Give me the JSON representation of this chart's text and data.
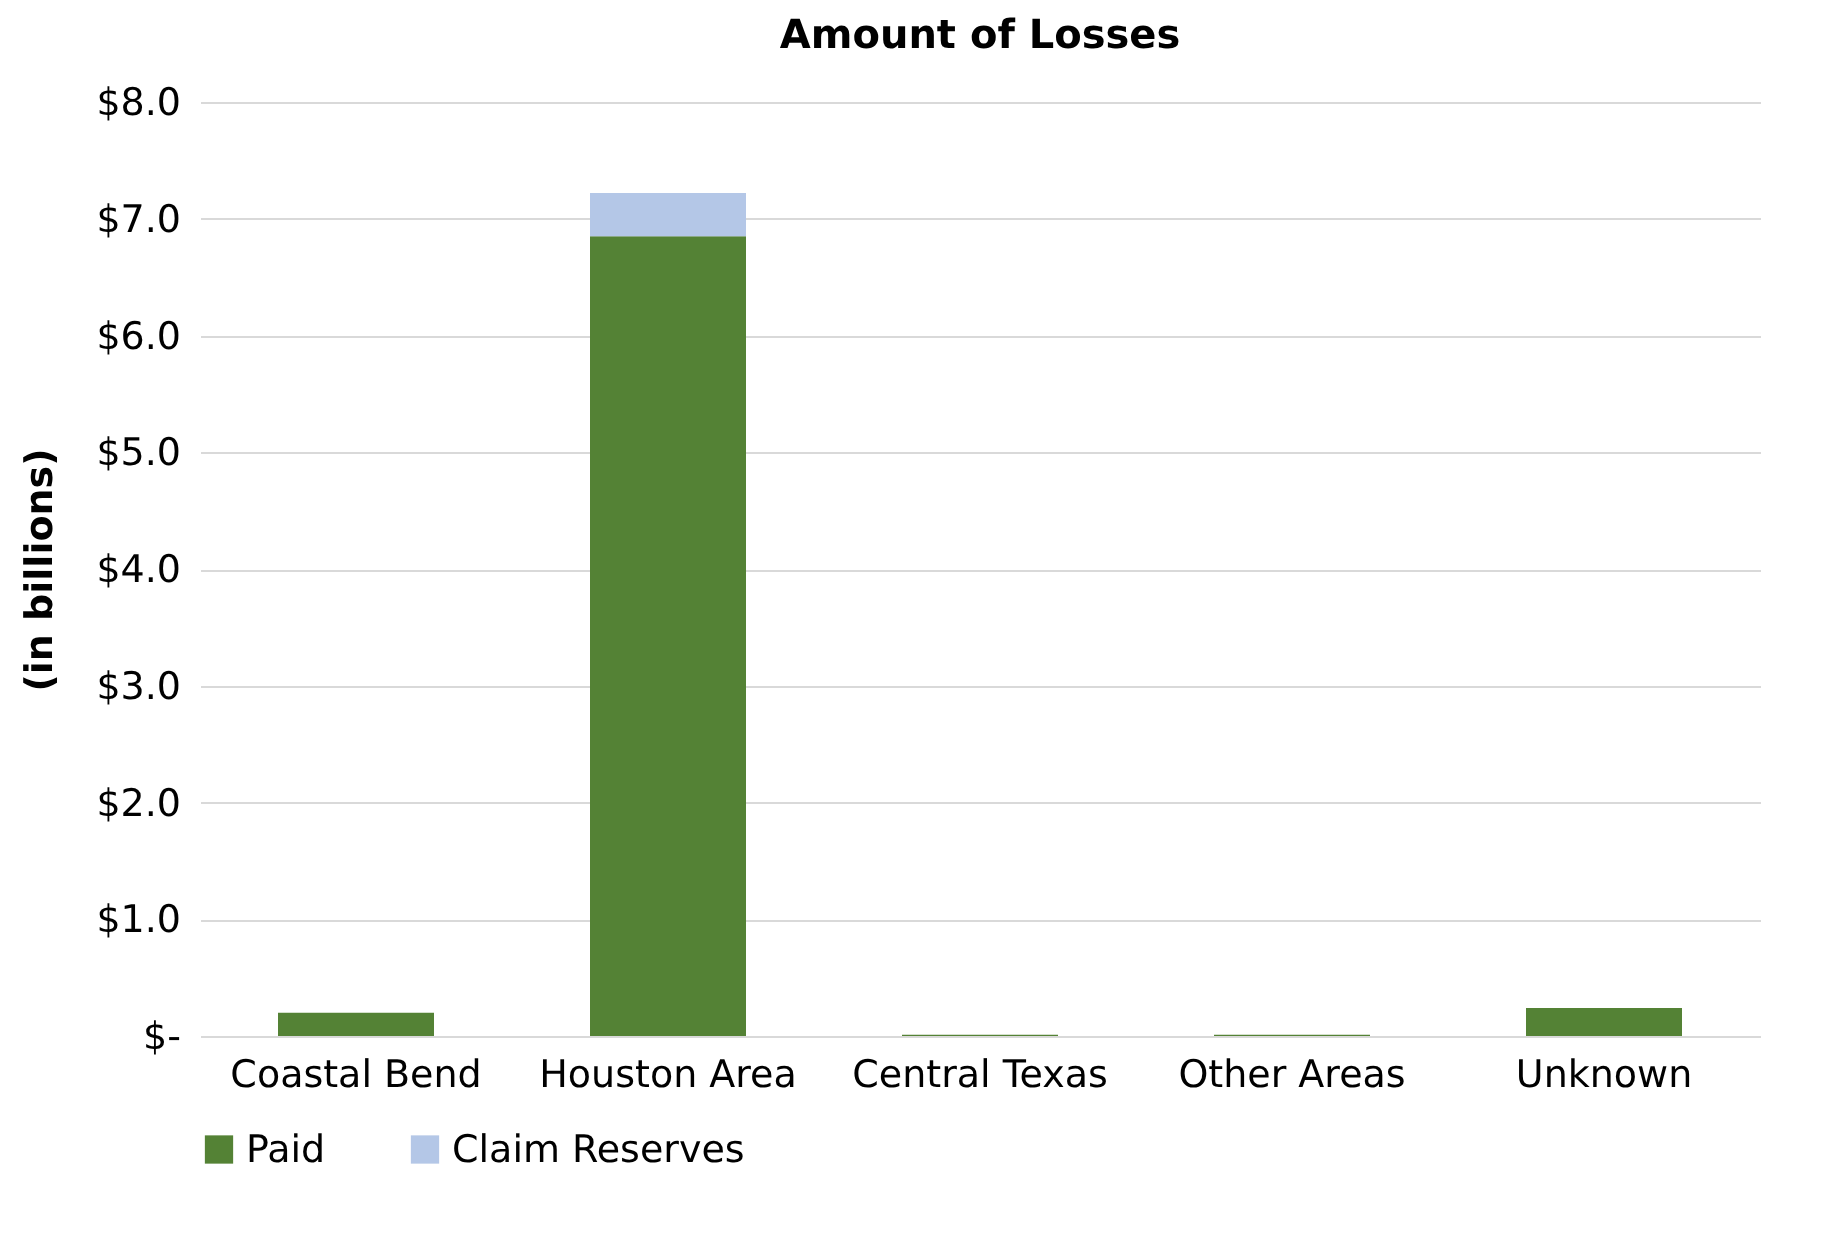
{
  "chart_data": {
    "type": "bar",
    "title": "Amount of Losses",
    "ylabel": "(in billions)",
    "stacked": true,
    "categories": [
      "Coastal Bend",
      "Houston Area",
      "Central Texas",
      "Other Areas",
      "Unknown"
    ],
    "series": [
      {
        "name": "Paid",
        "color": "#548235",
        "values": [
          0.2,
          6.85,
          0.01,
          0.01,
          0.24
        ]
      },
      {
        "name": "Claim Reserves",
        "color": "#b4c7e7",
        "values": [
          0,
          0.37,
          0,
          0,
          0
        ]
      }
    ],
    "ylim": [
      0,
      8
    ],
    "yticks": [
      {
        "value": 0,
        "label": "$-"
      },
      {
        "value": 1,
        "label": "$1.0"
      },
      {
        "value": 2,
        "label": "$2.0"
      },
      {
        "value": 3,
        "label": "$3.0"
      },
      {
        "value": 4,
        "label": "$4.0"
      },
      {
        "value": 5,
        "label": "$5.0"
      },
      {
        "value": 6,
        "label": "$6.0"
      },
      {
        "value": 7,
        "label": "$7.0"
      },
      {
        "value": 8,
        "label": "$8.0"
      }
    ],
    "grid": "y",
    "legend": "bottom"
  }
}
